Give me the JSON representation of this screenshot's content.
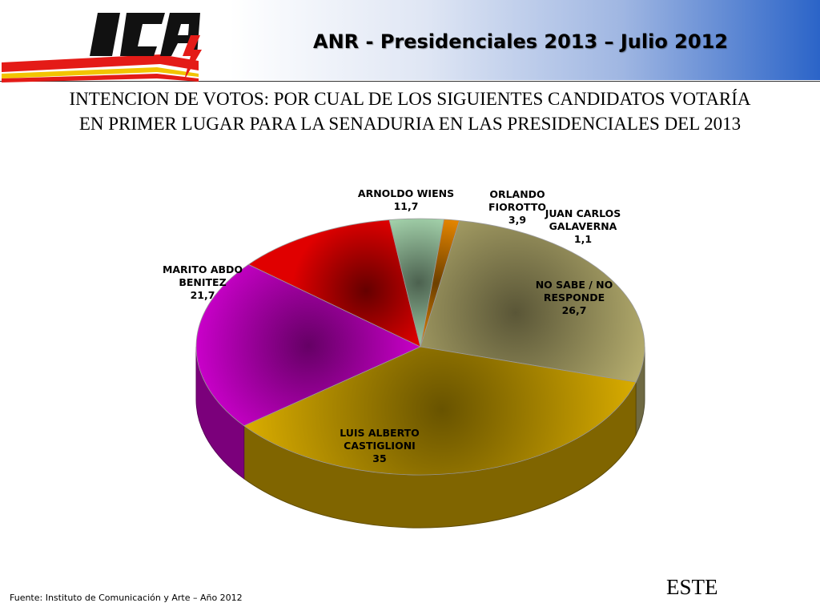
{
  "header": {
    "logo_text": "ICA",
    "title": "ANR - Presidenciales 2013 – Julio 2012"
  },
  "question": {
    "line1": "INTENCION DE VOTOS: POR CUAL DE LOS SIGUIENTES CANDIDATOS VOTARÍA",
    "line2": "EN PRIMER LUGAR PARA LA SENADURIA EN LAS PRESIDENCIALES DEL 2013"
  },
  "chart_data": {
    "type": "pie",
    "style": "3d",
    "slices": [
      {
        "label_lines": [
          "NO SABE / NO",
          "RESPONDE"
        ],
        "value": 26.7,
        "value_text": "26,7",
        "color": "#c9c07a"
      },
      {
        "label_lines": [
          "LUIS ALBERTO",
          "CASTIGLIONI"
        ],
        "value": 35,
        "value_text": "35",
        "color": "#e8b800"
      },
      {
        "label_lines": [
          "MARITO ABDO",
          "BENITEZ"
        ],
        "value": 21.7,
        "value_text": "21,7",
        "color": "#e000e0"
      },
      {
        "label_lines": [
          "ARNOLDO WIENS"
        ],
        "value": 11.7,
        "value_text": "11,7",
        "color": "#e00000"
      },
      {
        "label_lines": [
          "ORLANDO",
          "FIOROTTO"
        ],
        "value": 3.9,
        "value_text": "3,9",
        "color": "#a8d8b0"
      },
      {
        "label_lines": [
          "JUAN CARLOS",
          "GALAVERNA"
        ],
        "value": 1.1,
        "value_text": "1,1",
        "color": "#f08c00"
      }
    ]
  },
  "footer": {
    "source": "Fuente: Instituto de Comunicación y Arte – Año 2012",
    "region": "ESTE"
  }
}
